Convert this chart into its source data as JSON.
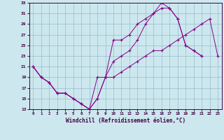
{
  "xlabel": "Windchill (Refroidissement éolien,°C)",
  "xlim": [
    -0.5,
    23.5
  ],
  "ylim": [
    13,
    33
  ],
  "xticks": [
    0,
    1,
    2,
    3,
    4,
    5,
    6,
    7,
    8,
    9,
    10,
    11,
    12,
    13,
    14,
    15,
    16,
    17,
    18,
    19,
    20,
    21,
    22,
    23
  ],
  "yticks": [
    13,
    15,
    17,
    19,
    21,
    23,
    25,
    27,
    29,
    31,
    33
  ],
  "bg_color": "#cce8ee",
  "line_color": "#880088",
  "grid_color": "#99bbcc",
  "line1_x": [
    0,
    1,
    2,
    3,
    4,
    5,
    6,
    7,
    8,
    9,
    10,
    11,
    12,
    13,
    14,
    15,
    16,
    17,
    18,
    19,
    20,
    21
  ],
  "line1_y": [
    21,
    19,
    18,
    16,
    16,
    15,
    14,
    13,
    15,
    19,
    26,
    26,
    27,
    29,
    30,
    31,
    32,
    32,
    30,
    25,
    24,
    23
  ],
  "line2_x": [
    0,
    1,
    2,
    3,
    4,
    5,
    6,
    7,
    8,
    9,
    10,
    11,
    12,
    13,
    14,
    15,
    16,
    17,
    18,
    19,
    20,
    21,
    22,
    23
  ],
  "line2_y": [
    21,
    19,
    18,
    16,
    16,
    15,
    14,
    13,
    19,
    19,
    19,
    20,
    21,
    22,
    23,
    24,
    24,
    25,
    26,
    27,
    28,
    29,
    30,
    23
  ],
  "line3_x": [
    0,
    1,
    2,
    3,
    4,
    5,
    6,
    7,
    8,
    9,
    10,
    11,
    12,
    13,
    14,
    15,
    16,
    17,
    18,
    19,
    20,
    21
  ],
  "line3_y": [
    21,
    19,
    18,
    16,
    16,
    15,
    14,
    13,
    15,
    19,
    22,
    23,
    24,
    26,
    29,
    31,
    33,
    32,
    30,
    25,
    24,
    23
  ]
}
